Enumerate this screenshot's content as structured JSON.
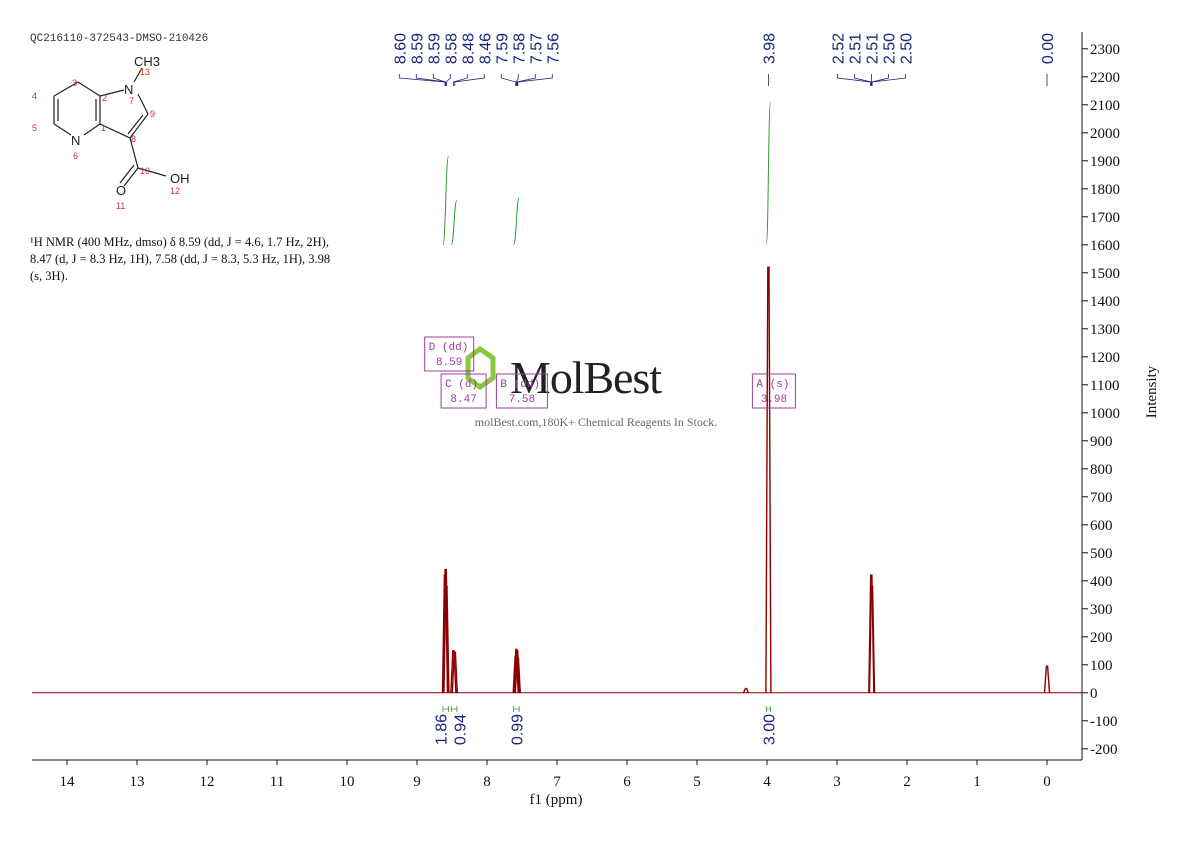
{
  "header": {
    "sample_id": "QC216110-372543-DMSO-210426"
  },
  "structure": {
    "atoms": [
      "CH3",
      "13",
      "N",
      "7",
      "9",
      "8",
      "10",
      "OH",
      "12",
      "O",
      "11",
      "1",
      "2",
      "3",
      "4",
      "5",
      "N",
      "6"
    ]
  },
  "description": [
    "¹H NMR (400 MHz, dmso) δ 8.59 (dd, J = 4.6, 1.7 Hz, 2H),",
    "8.47 (d, J = 8.3 Hz, 1H), 7.58 (dd, J = 8.3, 5.3 Hz, 1H), 3.98",
    "(s, 3H)."
  ],
  "watermark": {
    "logo": "MolBest",
    "tagline": "molBest.com,180K+ Chemical Reagents In Stock."
  },
  "chart_data": {
    "type": "nmr",
    "x_label": "f1 (ppm)",
    "y_label": "Intensity",
    "xlim": [
      14.5,
      -0.5
    ],
    "xticks": [
      14,
      13,
      12,
      11,
      10,
      9,
      8,
      7,
      6,
      5,
      4,
      3,
      2,
      1,
      0
    ],
    "ylim": [
      -240,
      2360
    ],
    "yticks": [
      -200,
      -100,
      0,
      100,
      200,
      300,
      400,
      500,
      600,
      700,
      800,
      900,
      1000,
      1100,
      1200,
      1300,
      1400,
      1500,
      1600,
      1700,
      1800,
      1900,
      2000,
      2100,
      2200,
      2300
    ],
    "color": "#8b0000",
    "peaks": {
      "x": [
        8.6,
        8.59,
        8.58,
        8.48,
        8.46,
        7.59,
        7.58,
        7.57,
        7.56,
        4.3,
        3.98,
        2.51,
        2.5,
        0.0
      ],
      "values": [
        420,
        440,
        380,
        150,
        145,
        130,
        155,
        150,
        125,
        15,
        1520,
        420,
        380,
        95
      ]
    },
    "peak_labels": {
      "values": [
        8.6,
        8.59,
        8.59,
        8.58,
        8.48,
        8.46,
        7.59,
        7.58,
        7.57,
        7.56,
        3.98,
        2.52,
        2.51,
        2.51,
        2.5,
        2.5,
        0
      ],
      "value_labels": [
        "8.60",
        "8.59",
        "8.59",
        "8.58",
        "8.48",
        "8.46",
        "7.59",
        "7.58",
        "7.57",
        "7.56",
        "3.98",
        "2.52",
        "2.51",
        "2.51",
        "2.50",
        "2.50",
        "0.00"
      ],
      "color": "#1a237e"
    },
    "integrals": {
      "ranges": [
        [
          8.63,
          8.55
        ],
        [
          8.51,
          8.43
        ],
        [
          7.62,
          7.54
        ],
        [
          4.01,
          3.95
        ]
      ],
      "values": [
        1.86,
        0.94,
        0.99,
        3
      ],
      "value_labels": [
        "1.86",
        "0.94",
        "0.99",
        "3.00"
      ],
      "color": "#2e9e2e"
    },
    "multiplets": [
      {
        "name": "D (dd)",
        "shift": 8.59
      },
      {
        "name": "C (d)",
        "shift": 8.47
      },
      {
        "name": "B (dd)",
        "shift": 7.58
      },
      {
        "name": "A (s)",
        "shift": 3.98
      }
    ]
  }
}
